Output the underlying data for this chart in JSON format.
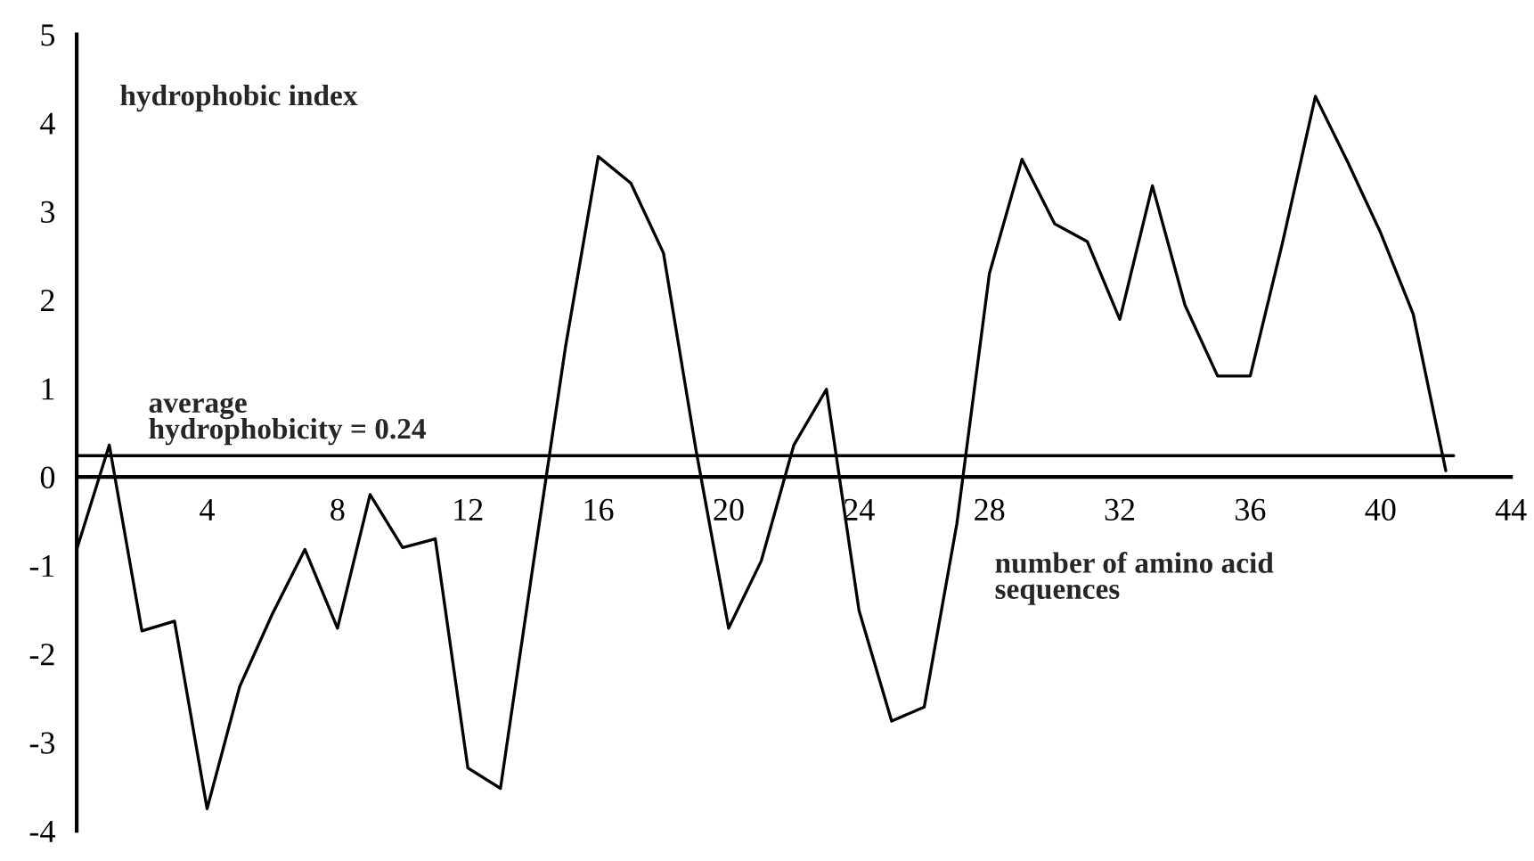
{
  "chart_data": {
    "type": "line",
    "x": [
      0,
      1,
      2,
      3,
      4,
      5,
      6,
      7,
      8,
      9,
      10,
      11,
      12,
      13,
      14,
      15,
      16,
      17,
      18,
      19,
      20,
      21,
      22,
      23,
      24,
      25,
      26,
      27,
      28,
      29,
      30,
      31,
      32,
      33,
      34,
      35,
      36,
      37,
      38,
      39,
      40,
      41,
      42
    ],
    "series": [
      {
        "color": "#000000",
        "values": [
          -0.82,
          0.36,
          -1.74,
          -1.63,
          -3.75,
          -2.37,
          -1.55,
          -0.82,
          -1.71,
          -0.2,
          -0.8,
          -0.7,
          -3.29,
          -3.52,
          -1.0,
          1.48,
          3.62,
          3.32,
          2.53,
          0.3,
          -1.71,
          -0.95,
          0.36,
          0.99,
          -1.51,
          -2.76,
          -2.6,
          -0.53,
          2.3,
          3.59,
          2.86,
          2.66,
          1.78,
          3.29,
          1.94,
          1.14,
          1.14,
          2.66,
          4.3,
          3.55,
          2.76,
          1.84,
          0.07
        ]
      }
    ],
    "xlim": [
      0,
      44
    ],
    "ylim": [
      -4,
      5
    ],
    "xticks": [
      4,
      8,
      12,
      16,
      20,
      24,
      28,
      32,
      36,
      40,
      44
    ],
    "yticks": [
      -4,
      -3,
      -2,
      -1,
      0,
      1,
      2,
      3,
      4,
      5
    ],
    "xlabel": "number of amino acid\nsequences",
    "ylabel": "hydrophobic index",
    "ref_lines": [
      {
        "axis": "y",
        "value": 0.24,
        "label": "average\nhydrophobicity = 0.24",
        "color": "#000000"
      }
    ],
    "grid": false,
    "legend": false,
    "marker": "none",
    "line_style": "solid"
  }
}
